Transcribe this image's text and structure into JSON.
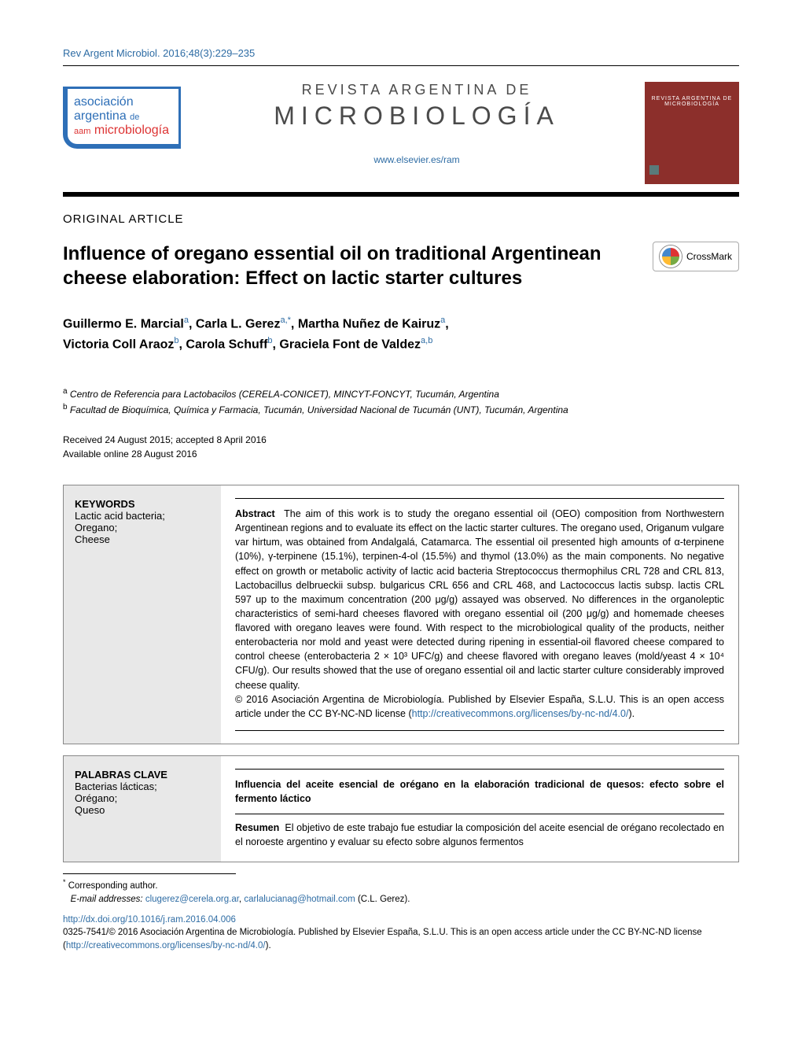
{
  "journal_ref": "Rev Argent Microbiol. 2016;48(3):229–235",
  "logo": {
    "line1": "asociación",
    "line2a": "argentina",
    "line2b": "de",
    "line3_pre": "aam",
    "line3": "microbiología"
  },
  "journal_title_1": "REVISTA ARGENTINA DE",
  "journal_title_2": "MICROBIOLOGÍA",
  "journal_link": "www.elsevier.es/ram",
  "cover_label": "REVISTA ARGENTINA DE MICROBIOLOGÍA",
  "article_type": "ORIGINAL ARTICLE",
  "title": "Influence of oregano essential oil on traditional Argentinean cheese elaboration: Effect on lactic starter cultures",
  "crossmark": "CrossMark",
  "authors_html": [
    {
      "name": "Guillermo E. Marcial",
      "sup": "a"
    },
    {
      "name": "Carla L. Gerez",
      "sup": "a,*"
    },
    {
      "name": "Martha Nuñez de Kairuz",
      "sup": "a"
    },
    {
      "name": "Victoria Coll Araoz",
      "sup": "b"
    },
    {
      "name": "Carola Schuff",
      "sup": "b"
    },
    {
      "name": "Graciela Font de Valdez",
      "sup": "a,b"
    }
  ],
  "affiliations": [
    {
      "sup": "a",
      "text": "Centro de Referencia para Lactobacilos (CERELA-CONICET), MINCYT-FONCYT, Tucumán, Argentina"
    },
    {
      "sup": "b",
      "text": "Facultad de Bioquímica, Química y Farmacia, Tucumán, Universidad Nacional de Tucumán (UNT), Tucumán, Argentina"
    }
  ],
  "dates": {
    "received_accepted": "Received 24 August 2015; accepted 8 April 2016",
    "available": "Available online 28 August 2016"
  },
  "keywords_head": "KEYWORDS",
  "keywords": "Lactic acid bacteria;\nOregano;\nCheese",
  "abstract_head": "Abstract",
  "abstract_body": "The aim of this work is to study the oregano essential oil (OEO) composition from Northwestern Argentinean regions and to evaluate its effect on the lactic starter cultures. The oregano used, Origanum vulgare var hirtum, was obtained from Andalgalá, Catamarca. The essential oil presented high amounts of α-terpinene (10%), γ-terpinene (15.1%), terpinen-4-ol (15.5%) and thymol (13.0%) as the main components. No negative effect on growth or metabolic activity of lactic acid bacteria Streptococcus thermophilus CRL 728 and CRL 813, Lactobacillus delbrueckii subsp. bulgaricus CRL 656 and CRL 468, and Lactococcus lactis subsp. lactis CRL 597 up to the maximum concentration (200 μg/g) assayed was observed. No differences in the organoleptic characteristics of semi-hard cheeses flavored with oregano essential oil (200 μg/g) and homemade cheeses flavored with oregano leaves were found. With respect to the microbiological quality of the products, neither enterobacteria nor mold and yeast were detected during ripening in essential-oil flavored cheese compared to control cheese (enterobacteria 2 × 10³ UFC/g) and cheese flavored with oregano leaves (mold/yeast 4 × 10⁴ CFU/g). Our results showed that the use of oregano essential oil and lactic starter culture considerably improved cheese quality.",
  "abstract_copyright": "© 2016 Asociación Argentina de Microbiología. Published by Elsevier España, S.L.U. This is an open access article under the CC BY-NC-ND license (",
  "abstract_license_link": "http://creativecommons.org/licenses/by-nc-nd/4.0/",
  "abstract_copyright_tail": ").",
  "palabras_head": "PALABRAS CLAVE",
  "palabras": "Bacterias lácticas;\nOrégano;\nQueso",
  "resumen_title": "Influencia del aceite esencial de orégano en la elaboración tradicional de quesos: efecto sobre el fermento láctico",
  "resumen_head": "Resumen",
  "resumen_body": "El objetivo de este trabajo fue estudiar la composición del aceite esencial de orégano recolectado en el noroeste argentino y evaluar su efecto sobre algunos fermentos",
  "footnote_star": "*",
  "footnote_corresponding": "Corresponding author.",
  "footnote_email_label": "E-mail addresses:",
  "footnote_emails": [
    "clugerez@cerela.org.ar",
    "carlalucianag@hotmail.com"
  ],
  "footnote_email_tail": "(C.L. Gerez).",
  "doi": "http://dx.doi.org/10.1016/j.ram.2016.04.006",
  "issn_copy": "0325-7541/© 2016 Asociación Argentina de Microbiología. Published by Elsevier España, S.L.U. This is an open access article under the CC BY-NC-ND license (",
  "issn_link": "http://creativecommons.org/licenses/by-nc-nd/4.0/",
  "issn_tail": ").",
  "colors": {
    "link": "#2e6ca4",
    "logo_blue": "#2e6fb7",
    "logo_red": "#d33",
    "cover_bg": "#8c2f2b",
    "box_gray": "#e8e8e8"
  }
}
